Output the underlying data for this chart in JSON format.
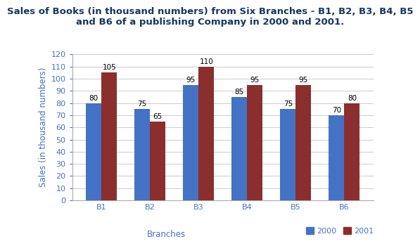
{
  "title": "Sales of Books (in thousand numbers) from Six Branches - B1, B2, B3, B4, B5\nand B6 of a publishing Company in 2000 and 2001.",
  "xlabel": "Branches",
  "ylabel": "Sales (in thousand numbers)",
  "categories": [
    "B1",
    "B2",
    "B3",
    "B4",
    "B5",
    "B6"
  ],
  "values_2000": [
    80,
    75,
    95,
    85,
    75,
    70
  ],
  "values_2001": [
    105,
    65,
    110,
    95,
    95,
    80
  ],
  "color_2000": "#4472C4",
  "color_2001": "#8B2E2E",
  "ylim": [
    0,
    120
  ],
  "yticks": [
    0,
    10,
    20,
    30,
    40,
    50,
    60,
    70,
    80,
    90,
    100,
    110,
    120
  ],
  "bar_width": 0.32,
  "legend_labels": [
    "2000",
    "2001"
  ],
  "title_fontsize": 9.5,
  "axis_label_fontsize": 8.5,
  "tick_fontsize": 8,
  "annotation_fontsize": 7.5,
  "title_color": "#17375E",
  "axis_label_color": "#4472C4",
  "tick_color": "#4472C4",
  "grid_color": "#CCCCCC",
  "background_color": "#FFFFFF"
}
